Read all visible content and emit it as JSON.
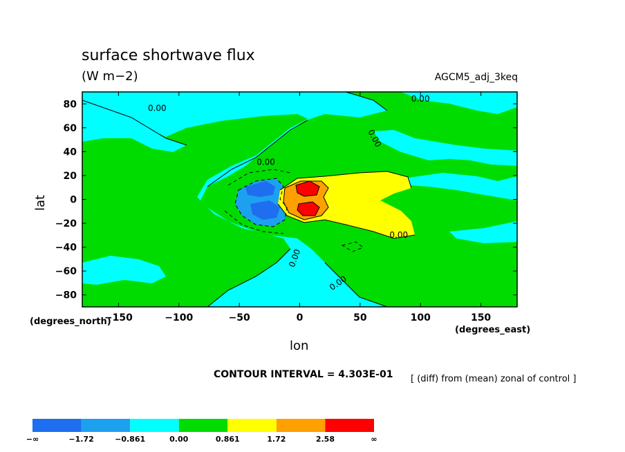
{
  "chart_data": {
    "type": "heatmap",
    "title": "surface shortwave flux",
    "units": "(W m−2)",
    "model_label": "AGCM5_adj_3keq",
    "xlabel": "lon",
    "ylabel": "lat",
    "x_units": "(degrees_east)",
    "y_units": "(degrees_north)",
    "xlim": [
      -180,
      180
    ],
    "ylim": [
      -90,
      90
    ],
    "x_ticks": [
      -150,
      -100,
      -50,
      0,
      50,
      100,
      150
    ],
    "y_ticks": [
      80,
      60,
      40,
      20,
      0,
      -20,
      -40,
      -60,
      -80
    ],
    "x_tick_labels": [
      "−150",
      "−100",
      "−50",
      "0",
      "50",
      "100",
      "150"
    ],
    "y_tick_labels": [
      "80",
      "60",
      "40",
      "20",
      "0",
      "−20",
      "−40",
      "−60",
      "−80"
    ],
    "contour_interval": "CONTOUR INTERVAL = 4.303E-01",
    "note": "[ (diff) from (mean) zonal of control ]",
    "contour_labels": [
      "0.00",
      "0.00",
      "0.00",
      "0.00",
      "0.00",
      "0.00",
      "0.00"
    ],
    "colorbar": {
      "levels": [
        "−∞",
        "−1.72",
        "−0.861",
        "0.00",
        "0.861",
        "1.72",
        "2.58",
        "∞"
      ],
      "colors": [
        "#1e6ef0",
        "#1ea0f0",
        "#00ffff",
        "#00dc00",
        "#ffff00",
        "#ffa000",
        "#ff0000"
      ]
    }
  }
}
